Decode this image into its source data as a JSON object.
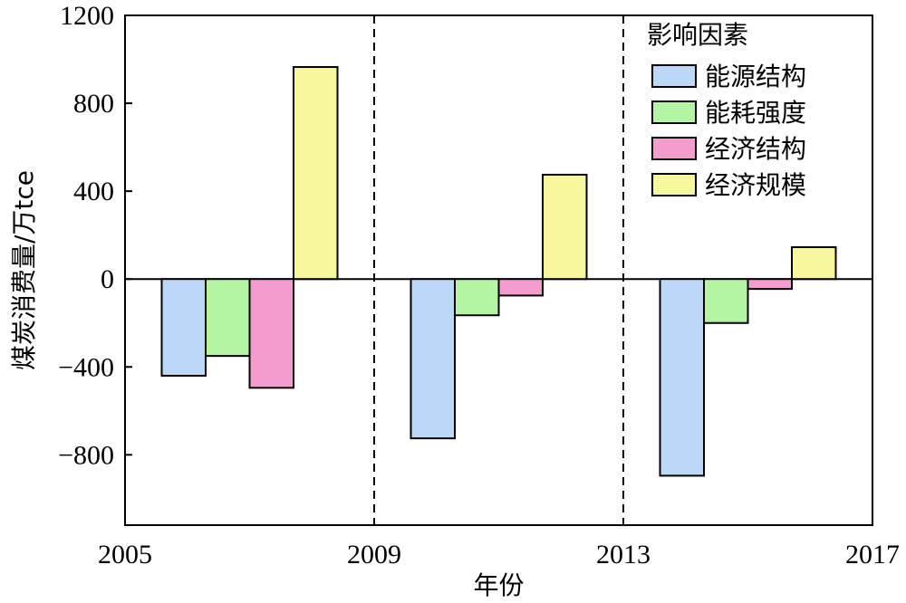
{
  "chart_data": {
    "type": "bar",
    "xlabel": "年份",
    "ylabel": "煤炭消费量/万tce",
    "ylim": [
      -1120,
      1200
    ],
    "yticks": [
      1200,
      800,
      400,
      0,
      -400,
      -800
    ],
    "ytick_labels": [
      "1200",
      "800",
      "400",
      "0",
      "−400",
      "−800"
    ],
    "xlim": [
      2005,
      2017
    ],
    "xticks": [
      2005,
      2009,
      2013,
      2017
    ],
    "xtick_labels": [
      "2005",
      "2009",
      "2013",
      "2017"
    ],
    "dividers": [
      2009,
      2013
    ],
    "categories": [
      "2005—2009",
      "2009—2013",
      "2013—2017"
    ],
    "series": [
      {
        "name": "能源结构",
        "color": "#bcd8f7",
        "values": [
          -440,
          -725,
          -895
        ]
      },
      {
        "name": "能耗强度",
        "color": "#b3f5a3",
        "values": [
          -350,
          -165,
          -200
        ]
      },
      {
        "name": "经济结构",
        "color": "#f59ccf",
        "values": [
          -495,
          -75,
          -45
        ]
      },
      {
        "name": "经济规模",
        "color": "#f7f79d",
        "values": [
          965,
          475,
          145
        ]
      }
    ],
    "legend": {
      "title": "影响因素",
      "position": "top-right"
    }
  }
}
